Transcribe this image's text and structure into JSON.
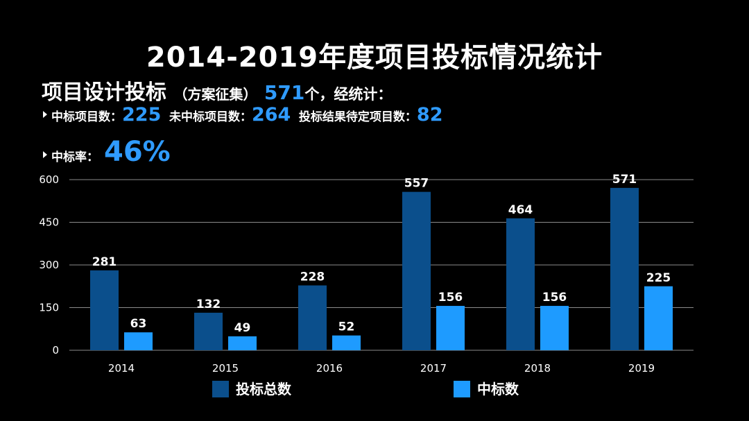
{
  "title": "2014-2019年度项目投标情况统计",
  "summary": {
    "heading": "项目设计投标",
    "paren": "（方案征集）",
    "count": "571",
    "tail": "个，经统计："
  },
  "stats": {
    "won_label": "中标项目数：",
    "won_value": "225",
    "lost_label": "未中标项目数：",
    "lost_value": "264",
    "pending_label": "投标结果待定项目数：",
    "pending_value": "82",
    "rate_label": "中标率：",
    "rate_value": "46%"
  },
  "colors": {
    "background": "#000000",
    "accent": "#2f9bff",
    "series_total": "#0b4f8c",
    "series_won": "#1e9bff",
    "grid": "#8c8c8c"
  },
  "chart_data": {
    "type": "bar",
    "categories": [
      "2014",
      "2015",
      "2016",
      "2017",
      "2018",
      "2019"
    ],
    "series": [
      {
        "name": "投标总数",
        "values": [
          281,
          132,
          228,
          557,
          464,
          571
        ]
      },
      {
        "name": "中标数",
        "values": [
          63,
          49,
          52,
          156,
          156,
          225
        ]
      }
    ],
    "yticks": [
      "0",
      "150",
      "300",
      "450",
      "600"
    ],
    "ylim": [
      0,
      600
    ],
    "grid": true,
    "legend": "bottom"
  }
}
